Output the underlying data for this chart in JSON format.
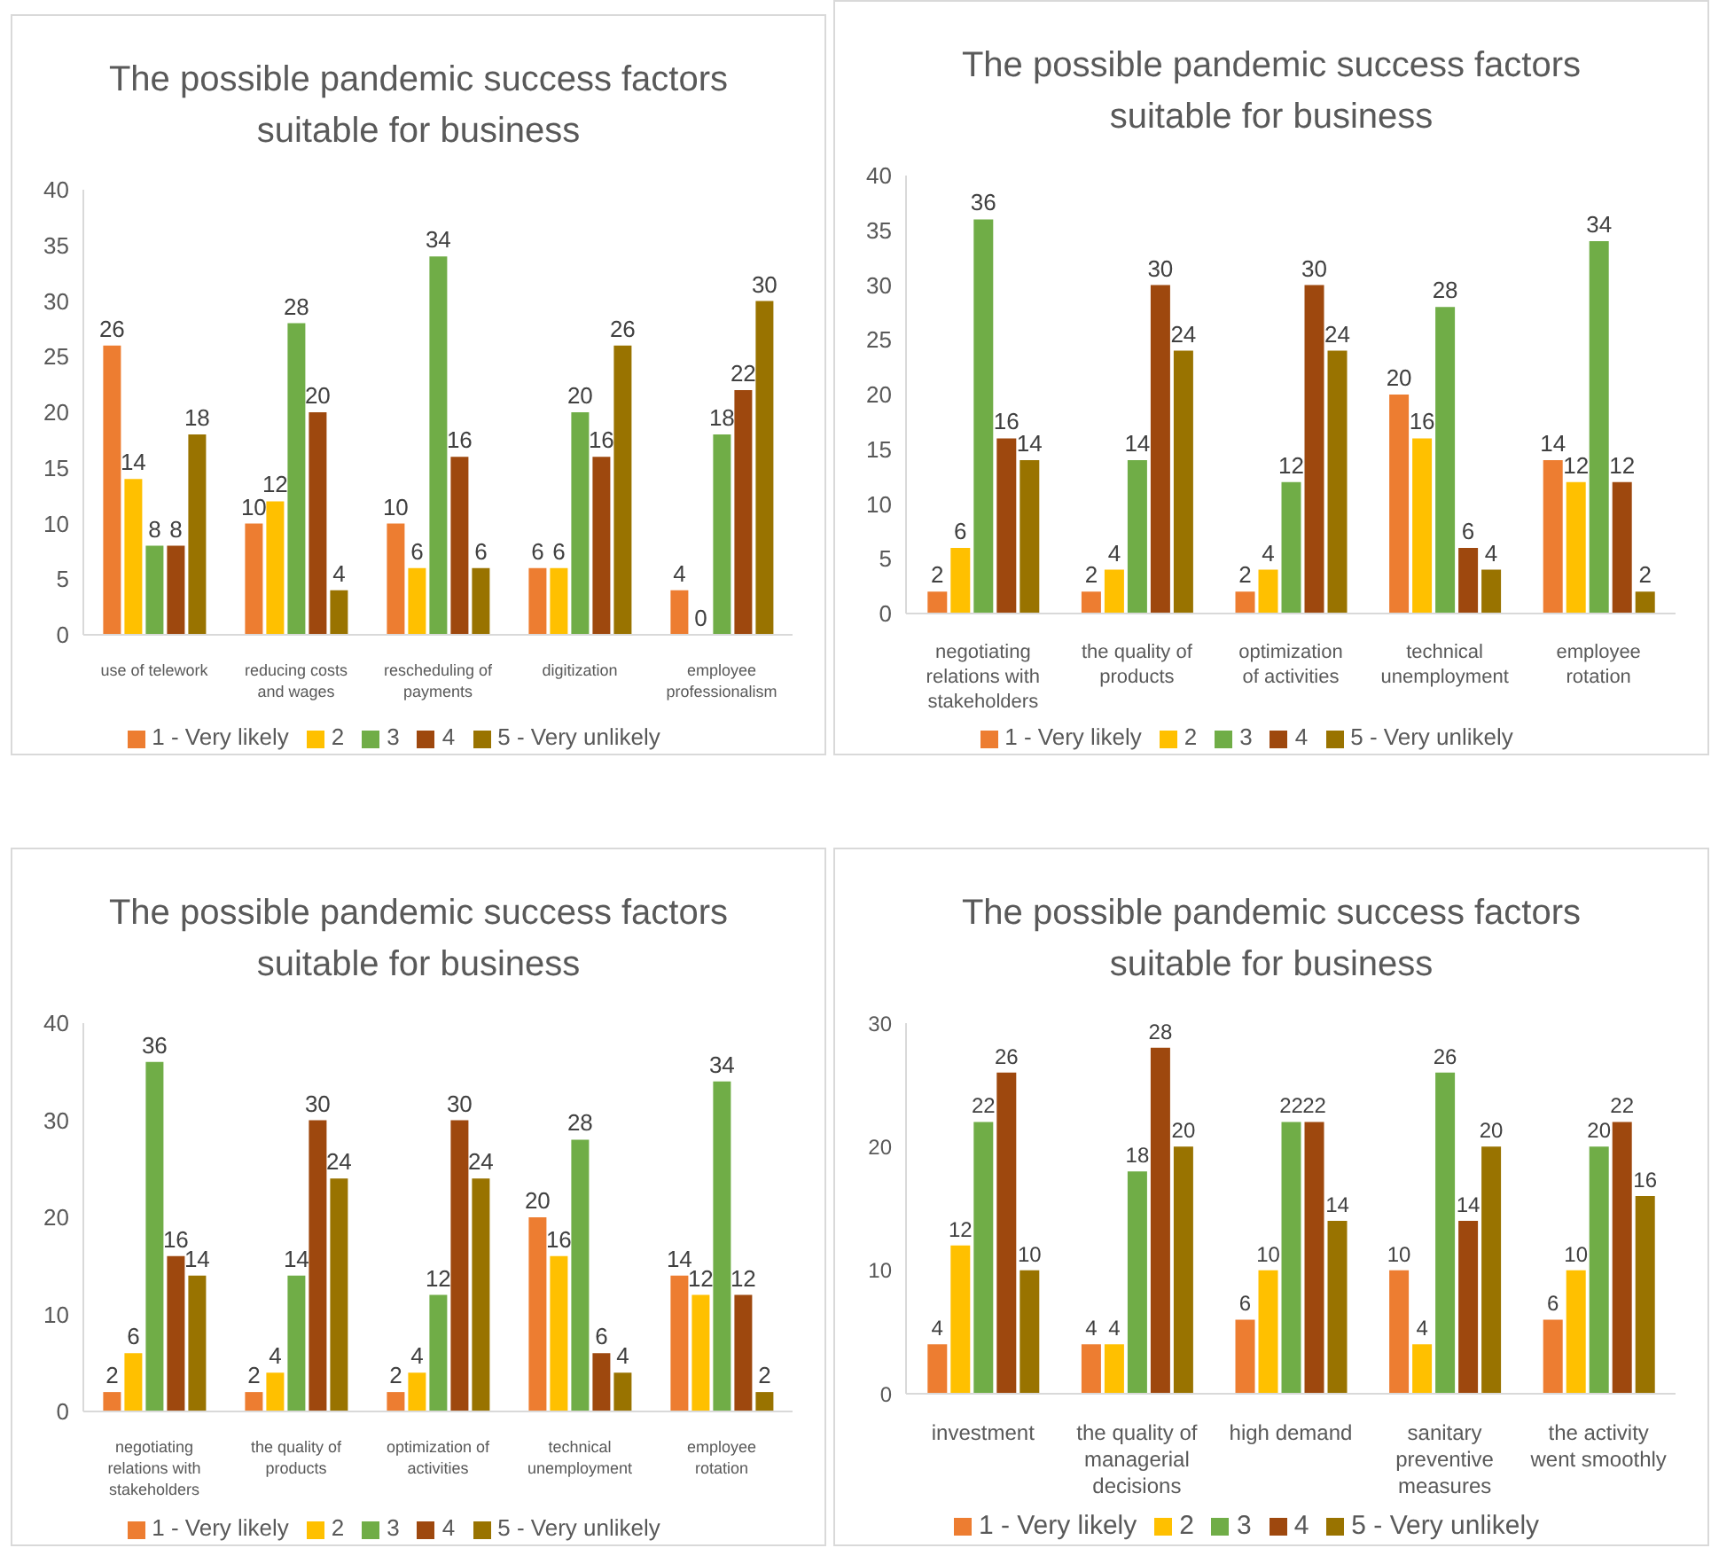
{
  "chart_data": [
    {
      "type": "bar",
      "title": "The possible pandemic success factors suitable for business",
      "categories": [
        "use of telework",
        "reducing costs and wages",
        "rescheduling of payments",
        "digitization",
        "employee professionalism"
      ],
      "series": [
        {
          "name": "1 - Very likely",
          "color": "#ed7d31",
          "values": [
            26,
            10,
            10,
            6,
            4
          ]
        },
        {
          "name": "2",
          "color": "#ffc000",
          "values": [
            14,
            12,
            6,
            6,
            0
          ]
        },
        {
          "name": "3",
          "color": "#70ad47",
          "values": [
            8,
            28,
            34,
            20,
            18
          ]
        },
        {
          "name": "4",
          "color": "#9e480e",
          "values": [
            8,
            20,
            16,
            16,
            22
          ]
        },
        {
          "name": "5 - Very unlikely",
          "color": "#997300",
          "values": [
            18,
            4,
            6,
            26,
            30
          ]
        }
      ],
      "ylim": [
        0,
        40
      ],
      "yticks": [
        0,
        5,
        10,
        15,
        20,
        25,
        30,
        35,
        40
      ],
      "grid": false,
      "legend": "bottom",
      "data_labels": true
    },
    {
      "type": "bar",
      "title": "The possible pandemic success factors suitable for business",
      "categories": [
        "negotiating relations with stakeholders",
        "the quality of products",
        "optimization of activities",
        "technical unemployment",
        "employee rotation"
      ],
      "series": [
        {
          "name": "1 - Very likely",
          "color": "#ed7d31",
          "values": [
            2,
            2,
            2,
            20,
            14
          ]
        },
        {
          "name": "2",
          "color": "#ffc000",
          "values": [
            6,
            4,
            4,
            16,
            12
          ]
        },
        {
          "name": "3",
          "color": "#70ad47",
          "values": [
            36,
            14,
            12,
            28,
            34
          ]
        },
        {
          "name": "4",
          "color": "#9e480e",
          "values": [
            16,
            30,
            30,
            6,
            12
          ]
        },
        {
          "name": "5 - Very unlikely",
          "color": "#997300",
          "values": [
            14,
            24,
            24,
            4,
            2
          ]
        }
      ],
      "ylim": [
        0,
        40
      ],
      "yticks": [
        0,
        5,
        10,
        15,
        20,
        25,
        30,
        35,
        40
      ],
      "grid": false,
      "legend": "bottom",
      "data_labels": true
    },
    {
      "type": "bar",
      "title": "The possible pandemic success factors suitable for business",
      "categories": [
        "negotiating relations with stakeholders",
        "the quality of products",
        "optimization of activities",
        "technical unemployment",
        "employee rotation"
      ],
      "series": [
        {
          "name": "1 - Very likely",
          "color": "#ed7d31",
          "values": [
            2,
            2,
            2,
            20,
            14
          ]
        },
        {
          "name": "2",
          "color": "#ffc000",
          "values": [
            6,
            4,
            4,
            16,
            12
          ]
        },
        {
          "name": "3",
          "color": "#70ad47",
          "values": [
            36,
            14,
            12,
            28,
            34
          ]
        },
        {
          "name": "4",
          "color": "#9e480e",
          "values": [
            16,
            30,
            30,
            6,
            12
          ]
        },
        {
          "name": "5 - Very unlikely",
          "color": "#997300",
          "values": [
            14,
            24,
            24,
            4,
            2
          ]
        }
      ],
      "ylim": [
        0,
        40
      ],
      "yticks": [
        0,
        10,
        20,
        30,
        40
      ],
      "grid": false,
      "legend": "bottom",
      "data_labels": true
    },
    {
      "type": "bar",
      "title": "The possible pandemic success factors suitable for business",
      "categories": [
        "investment",
        "the quality of managerial decisions",
        "high demand",
        "sanitary preventive measures",
        "the activity went smoothly"
      ],
      "series": [
        {
          "name": "1 - Very likely",
          "color": "#ed7d31",
          "values": [
            4,
            4,
            6,
            10,
            6
          ]
        },
        {
          "name": "2",
          "color": "#ffc000",
          "values": [
            12,
            4,
            10,
            4,
            10
          ]
        },
        {
          "name": "3",
          "color": "#70ad47",
          "values": [
            22,
            18,
            22,
            26,
            20
          ]
        },
        {
          "name": "4",
          "color": "#9e480e",
          "values": [
            26,
            28,
            22,
            14,
            22
          ]
        },
        {
          "name": "5 - Very unlikely",
          "color": "#997300",
          "values": [
            10,
            20,
            14,
            20,
            16
          ]
        }
      ],
      "ylim": [
        0,
        30
      ],
      "yticks": [
        0,
        10,
        20,
        30
      ],
      "grid": false,
      "legend": "bottom",
      "data_labels": true
    }
  ]
}
